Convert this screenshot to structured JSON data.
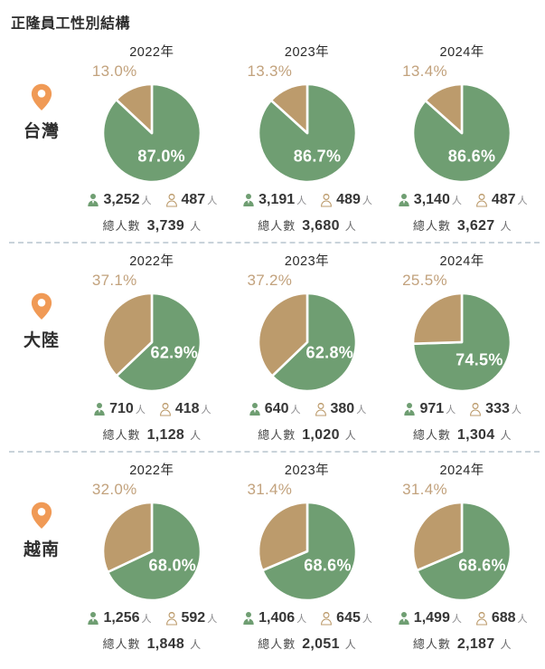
{
  "title": "正隆員工性別結構",
  "labels": {
    "total_label": "總人數",
    "person_suffix": "人"
  },
  "colors": {
    "male_green": "#6f9e72",
    "female_tan": "#bc9b6c",
    "outside_pct_label": "#c2a27d",
    "pin_orange": "#f09a56",
    "divider": "#c9d3da",
    "text_dark": "#363636"
  },
  "chart_data": {
    "type": "pie",
    "title": "正隆員工性別結構",
    "slice_colors": {
      "male": "#6f9e72",
      "female": "#bc9b6c"
    },
    "legend_position": "none",
    "groups": [
      {
        "region": "台灣",
        "charts": [
          {
            "year": "2022年",
            "male_pct": 87.0,
            "female_pct": 13.0,
            "male_count": "3,252",
            "female_count": "487",
            "total": "3,739"
          },
          {
            "year": "2023年",
            "male_pct": 86.7,
            "female_pct": 13.3,
            "male_count": "3,191",
            "female_count": "489",
            "total": "3,680"
          },
          {
            "year": "2024年",
            "male_pct": 86.6,
            "female_pct": 13.4,
            "male_count": "3,140",
            "female_count": "487",
            "total": "3,627"
          }
        ]
      },
      {
        "region": "大陸",
        "charts": [
          {
            "year": "2022年",
            "male_pct": 62.9,
            "female_pct": 37.1,
            "male_count": "710",
            "female_count": "418",
            "total": "1,128"
          },
          {
            "year": "2023年",
            "male_pct": 62.8,
            "female_pct": 37.2,
            "male_count": "640",
            "female_count": "380",
            "total": "1,020"
          },
          {
            "year": "2024年",
            "male_pct": 74.5,
            "female_pct": 25.5,
            "male_count": "971",
            "female_count": "333",
            "total": "1,304"
          }
        ]
      },
      {
        "region": "越南",
        "charts": [
          {
            "year": "2022年",
            "male_pct": 68.0,
            "female_pct": 32.0,
            "male_count": "1,256",
            "female_count": "592",
            "total": "1,848"
          },
          {
            "year": "2023年",
            "male_pct": 68.6,
            "female_pct": 31.4,
            "male_count": "1,406",
            "female_count": "645",
            "total": "2,051"
          },
          {
            "year": "2024年",
            "male_pct": 68.6,
            "female_pct": 31.4,
            "male_count": "1,499",
            "female_count": "688",
            "total": "2,187"
          }
        ]
      }
    ]
  }
}
